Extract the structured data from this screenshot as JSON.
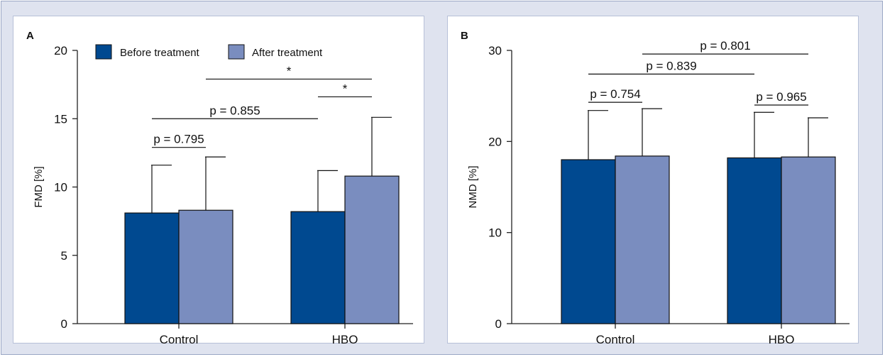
{
  "colors": {
    "before": "#004990",
    "after": "#7a8dbf",
    "axis": "#222222",
    "panel_bg": "#dfe3ef"
  },
  "chart_data": [
    {
      "type": "bar",
      "panel_label": "A",
      "title": "",
      "ylabel": "FMD [%]",
      "xlabel": "",
      "ylim": [
        0,
        20
      ],
      "yticks": [
        0,
        5,
        10,
        15,
        20
      ],
      "categories": [
        "Control",
        "HBO"
      ],
      "legend": {
        "placement": "top-left",
        "entries": [
          "Before treatment",
          "After treatment"
        ]
      },
      "series": [
        {
          "name": "Before treatment",
          "values": [
            8.1,
            8.2
          ],
          "error_upper": [
            11.6,
            11.2
          ]
        },
        {
          "name": "After treatment",
          "values": [
            8.3,
            10.8
          ],
          "error_upper": [
            12.2,
            15.1
          ]
        }
      ],
      "annotations": [
        {
          "text": "p = 0.795",
          "from": [
            0,
            0
          ],
          "to": [
            0,
            1
          ],
          "y": 12.9
        },
        {
          "text": "p = 0.855",
          "from": [
            0,
            0
          ],
          "to": [
            1,
            0
          ],
          "y": 15.0
        },
        {
          "text": "*",
          "from": [
            1,
            0
          ],
          "to": [
            1,
            1
          ],
          "y": 16.6
        },
        {
          "text": "*",
          "from": [
            0,
            1
          ],
          "to": [
            1,
            1
          ],
          "y": 17.9
        }
      ]
    },
    {
      "type": "bar",
      "panel_label": "B",
      "title": "",
      "ylabel": "NMD [%]",
      "xlabel": "",
      "ylim": [
        0,
        32
      ],
      "yticks": [
        0,
        10,
        20,
        30
      ],
      "categories": [
        "Control",
        "HBO"
      ],
      "legend": null,
      "series": [
        {
          "name": "Before treatment",
          "values": [
            18.0,
            18.2
          ],
          "error_upper": [
            23.4,
            23.2
          ]
        },
        {
          "name": "After treatment",
          "values": [
            18.4,
            18.3
          ],
          "error_upper": [
            23.6,
            22.6
          ]
        }
      ],
      "annotations": [
        {
          "text": "p = 0.754",
          "from": [
            0,
            0
          ],
          "to": [
            0,
            1
          ],
          "y": 24.3
        },
        {
          "text": "p = 0.965",
          "from": [
            1,
            0
          ],
          "to": [
            1,
            1
          ],
          "y": 24.0
        },
        {
          "text": "p = 0.839",
          "from": [
            0,
            0
          ],
          "to": [
            1,
            0
          ],
          "y": 27.4
        },
        {
          "text": "p = 0.801",
          "from": [
            0,
            1
          ],
          "to": [
            1,
            1
          ],
          "y": 29.6
        }
      ]
    }
  ]
}
